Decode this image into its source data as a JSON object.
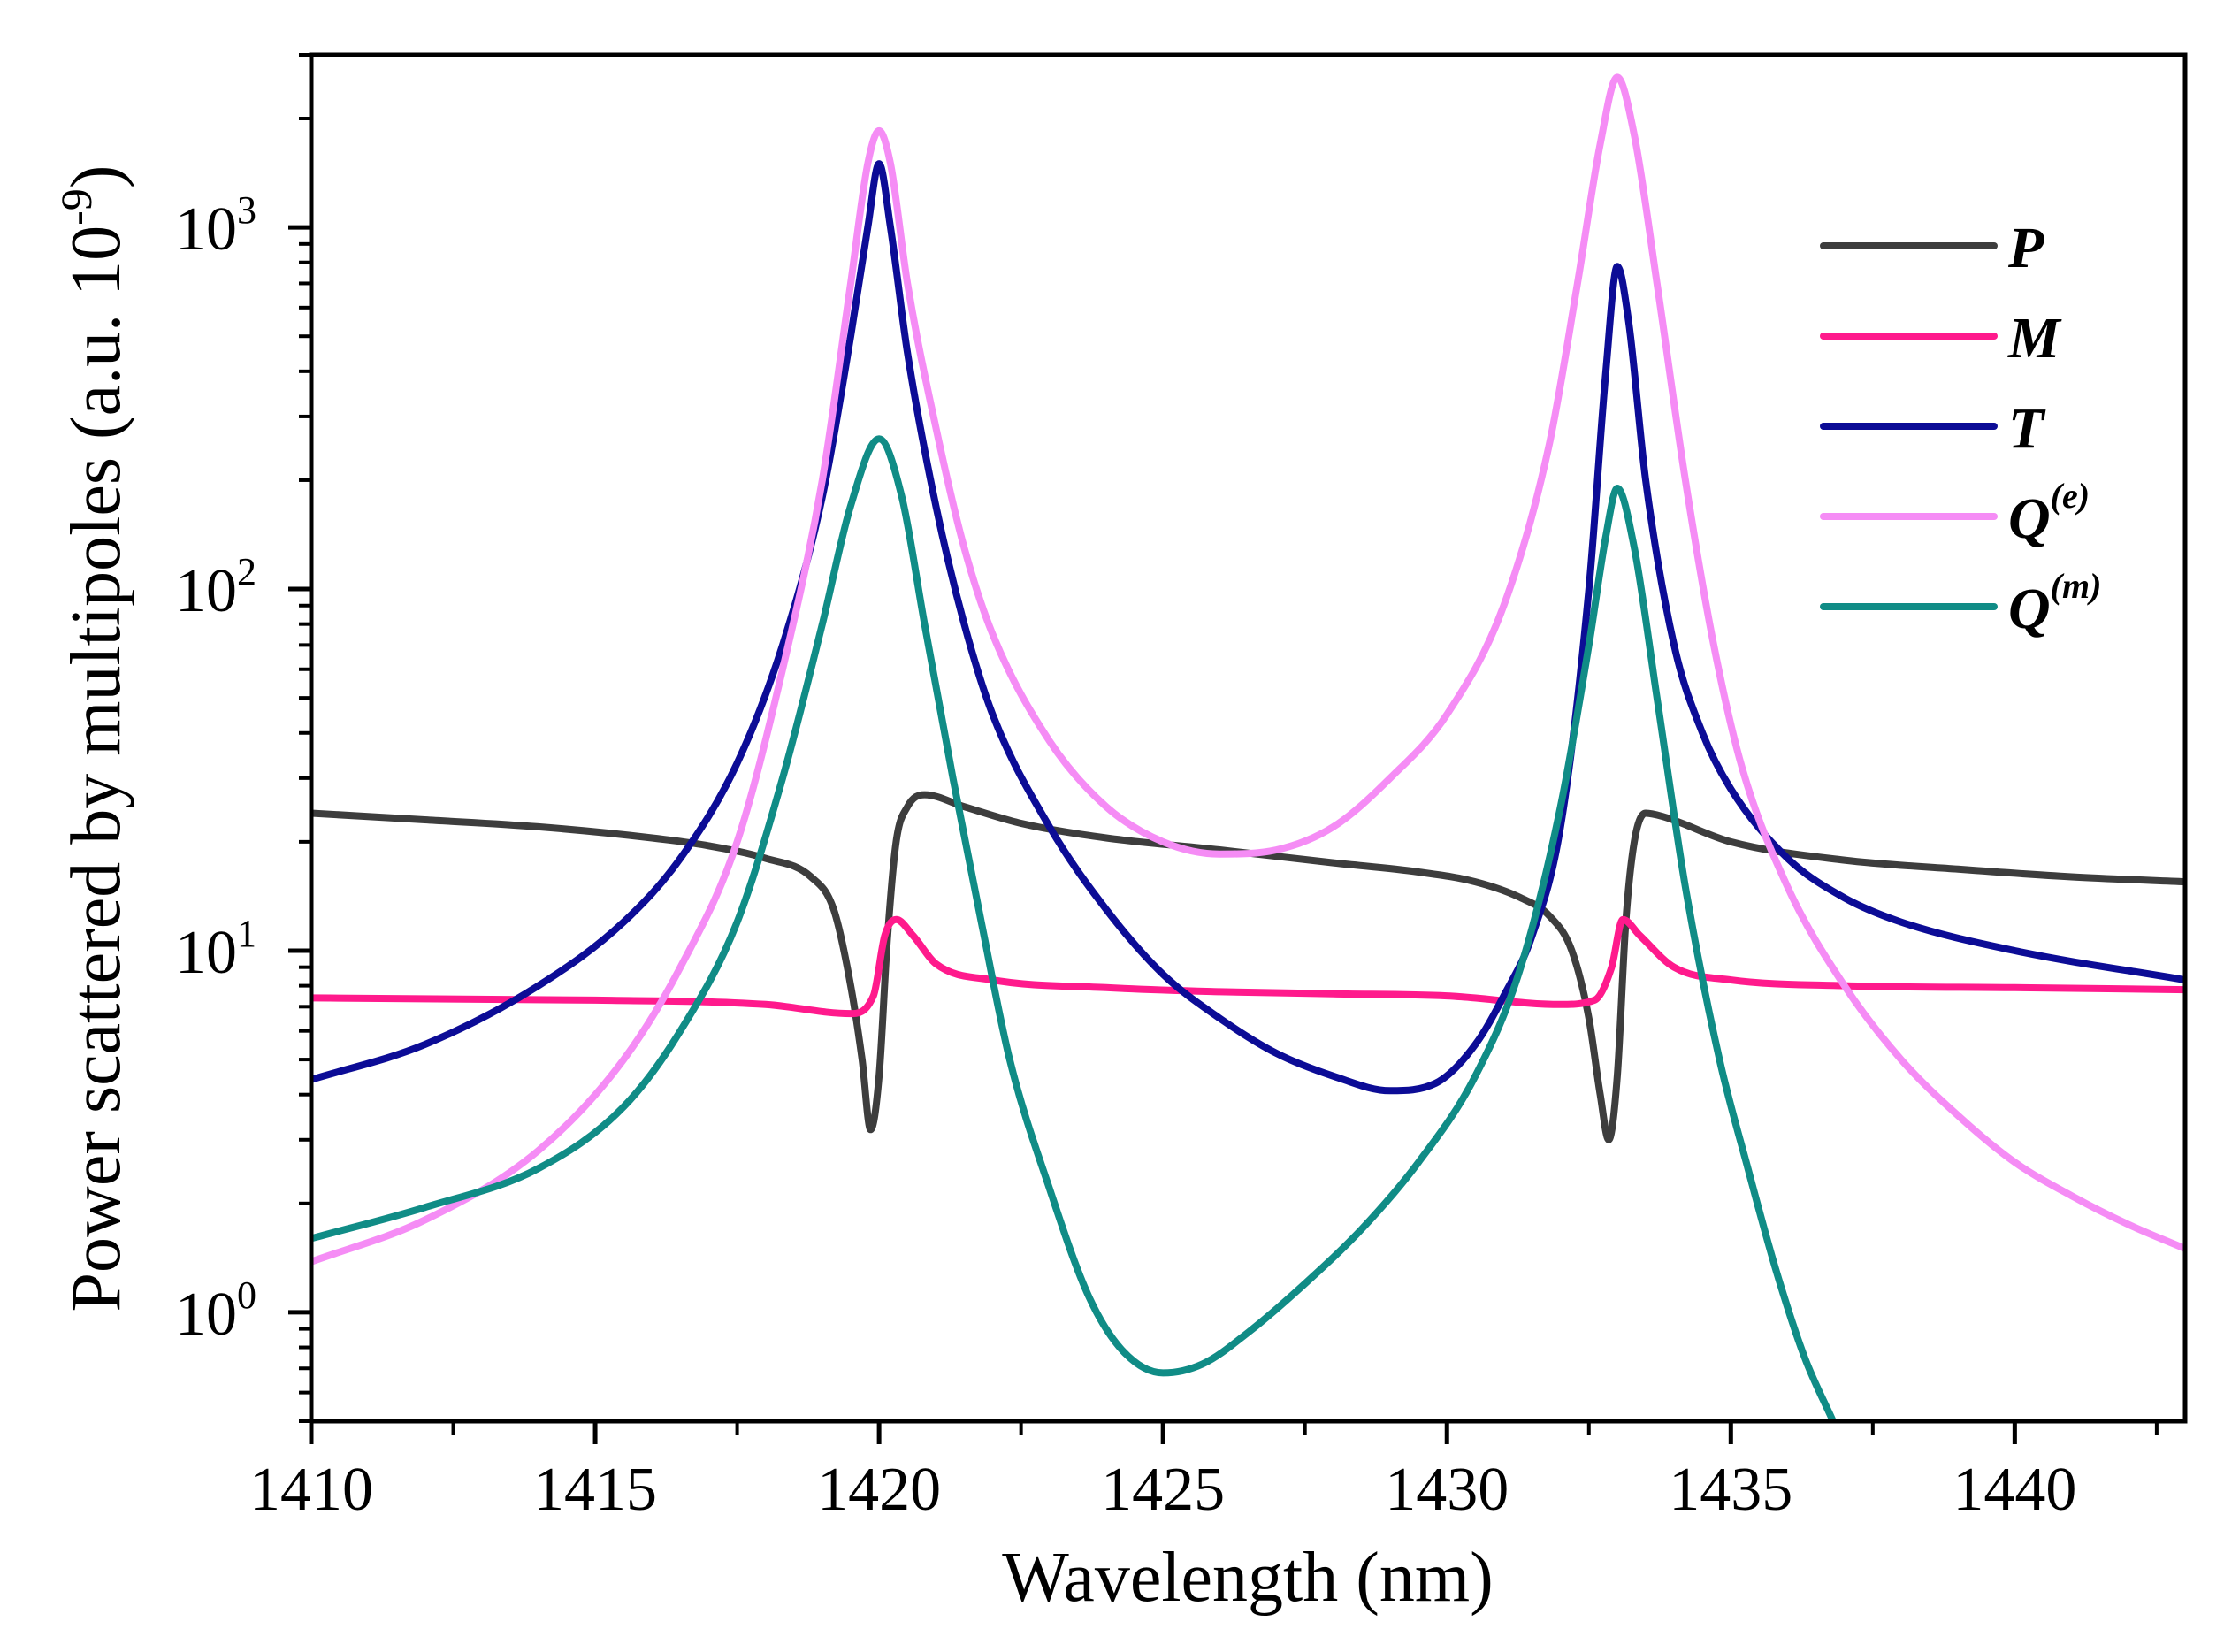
{
  "chart_data": {
    "type": "line",
    "xlabel": "Wavelength (nm)",
    "ylabel": "Power scattered by multipoles (a.u. 10",
    "ylabel_exp": "-9",
    "ylabel_close": ")",
    "xlim": [
      1410,
      1443
    ],
    "ylim": [
      0.5,
      3000
    ],
    "yscale": "log",
    "x_ticks": [
      1410,
      1415,
      1420,
      1425,
      1430,
      1435,
      1440
    ],
    "y_ticks": [
      {
        "value": 1,
        "base": "10",
        "exp": "0"
      },
      {
        "value": 10,
        "base": "10",
        "exp": "1"
      },
      {
        "value": 100,
        "base": "10",
        "exp": "2"
      },
      {
        "value": 1000,
        "base": "10",
        "exp": "3"
      }
    ],
    "legend_position": "top-right",
    "series": [
      {
        "name": "P",
        "label": "P",
        "sup": "",
        "color": "#3d3d3d",
        "points": [
          [
            1410,
            24
          ],
          [
            1412,
            23
          ],
          [
            1414,
            22
          ],
          [
            1416,
            20.5
          ],
          [
            1417,
            19.5
          ],
          [
            1418,
            18
          ],
          [
            1418.8,
            16
          ],
          [
            1419.2,
            13
          ],
          [
            1419.5,
            8
          ],
          [
            1419.7,
            5
          ],
          [
            1419.85,
            3.2
          ],
          [
            1420.0,
            4.5
          ],
          [
            1420.15,
            11
          ],
          [
            1420.3,
            20
          ],
          [
            1420.5,
            25
          ],
          [
            1420.8,
            27
          ],
          [
            1421.5,
            25
          ],
          [
            1422.5,
            22.5
          ],
          [
            1424,
            20.5
          ],
          [
            1426,
            19
          ],
          [
            1428,
            17.5
          ],
          [
            1429.5,
            16.5
          ],
          [
            1430.5,
            15.5
          ],
          [
            1431.3,
            14
          ],
          [
            1431.8,
            12.5
          ],
          [
            1432.2,
            10
          ],
          [
            1432.5,
            6.5
          ],
          [
            1432.7,
            4
          ],
          [
            1432.85,
            3.0
          ],
          [
            1433.0,
            4.5
          ],
          [
            1433.15,
            12
          ],
          [
            1433.3,
            20
          ],
          [
            1433.5,
            24
          ],
          [
            1433.8,
            23.5
          ],
          [
            1435,
            20
          ],
          [
            1437,
            17.8
          ],
          [
            1439,
            16.8
          ],
          [
            1441,
            16
          ],
          [
            1443,
            15.5
          ]
        ]
      },
      {
        "name": "M",
        "label": "M",
        "sup": "",
        "color": "#ff1a8c",
        "points": [
          [
            1410,
            7.4
          ],
          [
            1415,
            7.3
          ],
          [
            1418,
            7.1
          ],
          [
            1419.5,
            6.7
          ],
          [
            1419.9,
            7.5
          ],
          [
            1420.1,
            11
          ],
          [
            1420.3,
            12.2
          ],
          [
            1420.6,
            11
          ],
          [
            1421,
            9.2
          ],
          [
            1422,
            8.3
          ],
          [
            1424,
            7.9
          ],
          [
            1426,
            7.7
          ],
          [
            1428,
            7.6
          ],
          [
            1430,
            7.5
          ],
          [
            1432,
            7.1
          ],
          [
            1432.6,
            7.3
          ],
          [
            1432.9,
            9
          ],
          [
            1433.1,
            12.2
          ],
          [
            1433.4,
            11
          ],
          [
            1434,
            9
          ],
          [
            1435,
            8.3
          ],
          [
            1437,
            8
          ],
          [
            1440,
            7.9
          ],
          [
            1443,
            7.8
          ]
        ]
      },
      {
        "name": "T",
        "label": "T",
        "sup": "",
        "color": "#0c0c96",
        "points": [
          [
            1410,
            4.4
          ],
          [
            1412,
            5.5
          ],
          [
            1414,
            8
          ],
          [
            1415.5,
            12
          ],
          [
            1416.5,
            18
          ],
          [
            1417.5,
            33
          ],
          [
            1418.3,
            70
          ],
          [
            1419,
            180
          ],
          [
            1419.5,
            500
          ],
          [
            1419.8,
            1000
          ],
          [
            1420.0,
            1500
          ],
          [
            1420.2,
            1000
          ],
          [
            1420.5,
            450
          ],
          [
            1421,
            170
          ],
          [
            1421.5,
            80
          ],
          [
            1422,
            45
          ],
          [
            1423,
            22
          ],
          [
            1424,
            13
          ],
          [
            1425,
            8.6
          ],
          [
            1426,
            6.5
          ],
          [
            1427,
            5.2
          ],
          [
            1428,
            4.5
          ],
          [
            1429,
            4.1
          ],
          [
            1429.8,
            4.3
          ],
          [
            1430.5,
            5.5
          ],
          [
            1431,
            7.5
          ],
          [
            1431.5,
            11
          ],
          [
            1432,
            22
          ],
          [
            1432.5,
            100
          ],
          [
            1432.8,
            400
          ],
          [
            1433.0,
            780
          ],
          [
            1433.2,
            550
          ],
          [
            1433.5,
            200
          ],
          [
            1434,
            70
          ],
          [
            1434.5,
            40
          ],
          [
            1435,
            28
          ],
          [
            1436,
            18
          ],
          [
            1437,
            14
          ],
          [
            1438,
            12
          ],
          [
            1440,
            10
          ],
          [
            1443,
            8.3
          ]
        ]
      },
      {
        "name": "Q(e)",
        "label": "Q",
        "sup": "(e)",
        "color": "#f58cf5",
        "points": [
          [
            1410,
            1.38
          ],
          [
            1412,
            1.8
          ],
          [
            1414,
            2.8
          ],
          [
            1415.5,
            5
          ],
          [
            1416.5,
            9
          ],
          [
            1417.5,
            20
          ],
          [
            1418.3,
            60
          ],
          [
            1419,
            200
          ],
          [
            1419.5,
            700
          ],
          [
            1419.8,
            1500
          ],
          [
            1420.0,
            1850
          ],
          [
            1420.2,
            1500
          ],
          [
            1420.5,
            700
          ],
          [
            1421,
            280
          ],
          [
            1421.5,
            130
          ],
          [
            1422,
            75
          ],
          [
            1423,
            38
          ],
          [
            1424,
            25
          ],
          [
            1425,
            20
          ],
          [
            1426,
            18.5
          ],
          [
            1427,
            19
          ],
          [
            1428,
            22
          ],
          [
            1429,
            30
          ],
          [
            1430,
            45
          ],
          [
            1431,
            90
          ],
          [
            1431.8,
            250
          ],
          [
            1432.3,
            700
          ],
          [
            1432.7,
            1700
          ],
          [
            1433.0,
            2600
          ],
          [
            1433.3,
            1800
          ],
          [
            1433.7,
            700
          ],
          [
            1434.2,
            200
          ],
          [
            1434.7,
            70
          ],
          [
            1435.2,
            32
          ],
          [
            1436,
            15
          ],
          [
            1437,
            8
          ],
          [
            1438,
            5
          ],
          [
            1439,
            3.5
          ],
          [
            1440,
            2.6
          ],
          [
            1441,
            2.1
          ],
          [
            1442,
            1.75
          ],
          [
            1443,
            1.5
          ]
        ]
      },
      {
        "name": "Q(m)",
        "label": "Q",
        "sup": "(m)",
        "color": "#108c86",
        "points": [
          [
            1410,
            1.6
          ],
          [
            1412,
            1.95
          ],
          [
            1414,
            2.5
          ],
          [
            1415.5,
            3.7
          ],
          [
            1416.5,
            6
          ],
          [
            1417.5,
            12
          ],
          [
            1418.3,
            30
          ],
          [
            1419,
            80
          ],
          [
            1419.5,
            170
          ],
          [
            1420.0,
            260
          ],
          [
            1420.4,
            180
          ],
          [
            1420.8,
            80
          ],
          [
            1421.3,
            30
          ],
          [
            1421.8,
            12
          ],
          [
            1422.3,
            5
          ],
          [
            1423,
            2.2
          ],
          [
            1423.7,
            1.1
          ],
          [
            1424.3,
            0.78
          ],
          [
            1425,
            0.68
          ],
          [
            1425.7,
            0.72
          ],
          [
            1426.5,
            0.88
          ],
          [
            1427.5,
            1.2
          ],
          [
            1428.5,
            1.7
          ],
          [
            1429.5,
            2.6
          ],
          [
            1430.5,
            4.5
          ],
          [
            1431.3,
            9
          ],
          [
            1432,
            25
          ],
          [
            1432.5,
            70
          ],
          [
            1432.8,
            140
          ],
          [
            1433.0,
            190
          ],
          [
            1433.3,
            130
          ],
          [
            1433.7,
            50
          ],
          [
            1434.2,
            15
          ],
          [
            1434.8,
            5
          ],
          [
            1435.3,
            2.5
          ],
          [
            1435.8,
            1.3
          ],
          [
            1436.3,
            0.75
          ],
          [
            1436.8,
            0.5
          ]
        ]
      }
    ]
  }
}
